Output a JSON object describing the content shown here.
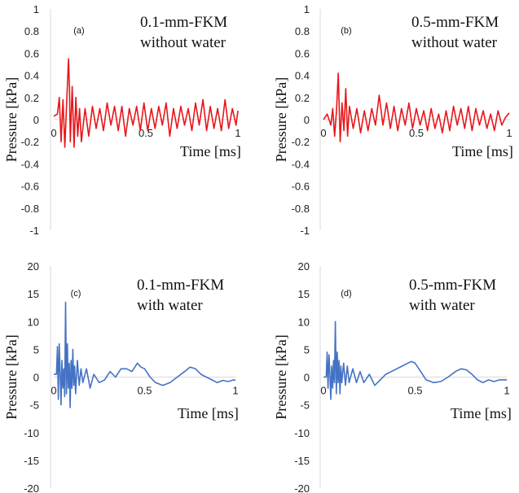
{
  "chart_data": [
    {
      "type": "line",
      "panel_label": "(a)",
      "annotation": [
        "0.1-mm-FKM",
        "without water"
      ],
      "xlabel": "Time [ms]",
      "ylabel": "Pressure [kPa]",
      "xlim": [
        0,
        1
      ],
      "ylim": [
        -1,
        1
      ],
      "xticks": [
        "0",
        "0.5",
        "1"
      ],
      "yticks": [
        "1",
        "0.8",
        "0.6",
        "0.4",
        "0.2",
        "0",
        "-0.2",
        "-0.4",
        "-0.6",
        "-0.8",
        "-1"
      ],
      "grid": false,
      "color": "#e8161b",
      "series": [
        {
          "x": [
            0,
            0.02,
            0.03,
            0.04,
            0.05,
            0.06,
            0.07,
            0.08,
            0.085,
            0.09,
            0.1,
            0.11,
            0.12,
            0.13,
            0.14,
            0.15,
            0.17,
            0.19,
            0.21,
            0.23,
            0.25,
            0.27,
            0.29,
            0.31,
            0.33,
            0.35,
            0.37,
            0.39,
            0.41,
            0.43,
            0.45,
            0.47,
            0.49,
            0.51,
            0.53,
            0.55,
            0.57,
            0.59,
            0.61,
            0.63,
            0.65,
            0.67,
            0.69,
            0.71,
            0.73,
            0.75,
            0.77,
            0.79,
            0.81,
            0.83,
            0.85,
            0.87,
            0.89,
            0.91,
            0.93,
            0.95,
            0.97,
            0.99,
            1.0
          ],
          "y": [
            0.03,
            0.05,
            0.2,
            -0.2,
            0.18,
            -0.25,
            0.15,
            0.55,
            0.3,
            -0.2,
            0.3,
            -0.25,
            0.2,
            -0.15,
            0.1,
            -0.2,
            0.1,
            -0.15,
            0.12,
            -0.08,
            0.1,
            -0.1,
            0.15,
            -0.05,
            0.12,
            -0.1,
            0.12,
            -0.15,
            0.1,
            -0.05,
            0.12,
            -0.1,
            0.15,
            -0.1,
            0.1,
            -0.08,
            0.12,
            -0.05,
            0.15,
            -0.15,
            0.1,
            -0.08,
            0.12,
            -0.05,
            0.1,
            -0.1,
            0.15,
            -0.05,
            0.18,
            -0.1,
            0.12,
            -0.08,
            0.1,
            -0.1,
            0.18,
            -0.08,
            0.1,
            -0.05,
            0.08
          ]
        }
      ]
    },
    {
      "type": "line",
      "panel_label": "(b)",
      "annotation": [
        "0.5-mm-FKM",
        "without water"
      ],
      "xlabel": "Time [ms]",
      "ylabel": "Pressure [kPa]",
      "xlim": [
        0,
        1
      ],
      "ylim": [
        -1,
        1
      ],
      "xticks": [
        "0",
        "0.5",
        "1"
      ],
      "yticks": [
        "1",
        "0.8",
        "0.6",
        "0.4",
        "0.2",
        "0",
        "-0.2",
        "-0.4",
        "-0.6",
        "-0.8",
        "-1"
      ],
      "grid": false,
      "color": "#e8161b",
      "series": [
        {
          "x": [
            0,
            0.02,
            0.04,
            0.05,
            0.06,
            0.07,
            0.08,
            0.09,
            0.1,
            0.11,
            0.12,
            0.13,
            0.14,
            0.16,
            0.18,
            0.2,
            0.22,
            0.24,
            0.26,
            0.28,
            0.3,
            0.32,
            0.34,
            0.36,
            0.38,
            0.4,
            0.42,
            0.44,
            0.46,
            0.48,
            0.5,
            0.52,
            0.54,
            0.56,
            0.58,
            0.6,
            0.62,
            0.64,
            0.66,
            0.68,
            0.7,
            0.72,
            0.74,
            0.76,
            0.78,
            0.8,
            0.82,
            0.84,
            0.86,
            0.88,
            0.9,
            0.92,
            0.94,
            0.96,
            0.98,
            1.0
          ],
          "y": [
            0.0,
            0.05,
            -0.05,
            0.1,
            -0.15,
            0.08,
            0.42,
            -0.2,
            0.15,
            -0.1,
            0.28,
            -0.15,
            0.12,
            -0.08,
            0.1,
            -0.12,
            0.08,
            -0.1,
            0.1,
            -0.05,
            0.22,
            -0.05,
            0.15,
            -0.08,
            0.12,
            -0.1,
            0.1,
            -0.05,
            0.15,
            -0.08,
            0.1,
            -0.05,
            0.08,
            -0.1,
            0.1,
            -0.08,
            0.05,
            -0.12,
            0.08,
            -0.1,
            0.12,
            -0.05,
            0.1,
            -0.08,
            0.12,
            -0.1,
            0.1,
            -0.05,
            0.08,
            -0.08,
            0.05,
            -0.1,
            0.08,
            -0.05,
            0.02,
            0.06
          ]
        }
      ]
    },
    {
      "type": "line",
      "panel_label": "(c)",
      "annotation": [
        "0.1-mm-FKM",
        "with water"
      ],
      "xlabel": "Time [ms]",
      "ylabel": "Pressure [kPa]",
      "xlim": [
        0,
        1
      ],
      "ylim": [
        -20,
        20
      ],
      "xticks": [
        "0",
        "0.5",
        "1"
      ],
      "yticks": [
        "20",
        "15",
        "10",
        "5",
        "0",
        "-5",
        "-10",
        "-15",
        "-20"
      ],
      "grid": false,
      "color": "#4472c4",
      "series": [
        {
          "x": [
            0,
            0.015,
            0.02,
            0.025,
            0.03,
            0.035,
            0.04,
            0.045,
            0.05,
            0.055,
            0.06,
            0.065,
            0.07,
            0.075,
            0.08,
            0.085,
            0.09,
            0.095,
            0.1,
            0.105,
            0.11,
            0.115,
            0.12,
            0.13,
            0.14,
            0.15,
            0.16,
            0.18,
            0.2,
            0.22,
            0.25,
            0.28,
            0.31,
            0.34,
            0.37,
            0.4,
            0.43,
            0.46,
            0.48,
            0.5,
            0.53,
            0.56,
            0.6,
            0.64,
            0.68,
            0.72,
            0.75,
            0.78,
            0.81,
            0.84,
            0.87,
            0.9,
            0.93,
            0.96,
            0.99,
            1.0
          ],
          "y": [
            0.5,
            0.5,
            5.5,
            -4,
            6,
            1,
            -5,
            3,
            -2,
            1.5,
            -3.5,
            13.5,
            -3,
            6,
            -2,
            2.5,
            -5.5,
            3,
            -2,
            5,
            -1.5,
            2,
            -3,
            3,
            -1.5,
            1.5,
            -1,
            1.5,
            -2,
            0.5,
            -1,
            -0.5,
            1,
            0,
            1.5,
            1.5,
            1,
            2.5,
            1.8,
            1.5,
            0,
            -1,
            -1.5,
            -1,
            0,
            1,
            1.8,
            1.5,
            0.5,
            0,
            -0.5,
            -1,
            -0.6,
            -0.8,
            -0.5,
            -0.6
          ]
        }
      ]
    },
    {
      "type": "line",
      "panel_label": "(d)",
      "annotation": [
        "0.5-mm-FKM",
        "with water"
      ],
      "xlabel": "Time [ms]",
      "ylabel": "Pressure [kPa]",
      "xlim": [
        0,
        1
      ],
      "ylim": [
        -20,
        20
      ],
      "xticks": [
        "0",
        "0.5",
        "1"
      ],
      "yticks": [
        "20",
        "15",
        "10",
        "5",
        "0",
        "-5",
        "-10",
        "-15",
        "-20"
      ],
      "grid": false,
      "color": "#4472c4",
      "series": [
        {
          "x": [
            0,
            0.015,
            0.02,
            0.025,
            0.03,
            0.035,
            0.04,
            0.045,
            0.05,
            0.055,
            0.06,
            0.065,
            0.07,
            0.075,
            0.08,
            0.085,
            0.09,
            0.095,
            0.1,
            0.11,
            0.12,
            0.13,
            0.14,
            0.16,
            0.18,
            0.2,
            0.22,
            0.25,
            0.28,
            0.31,
            0.34,
            0.37,
            0.4,
            0.43,
            0.46,
            0.48,
            0.5,
            0.53,
            0.56,
            0.6,
            0.64,
            0.68,
            0.72,
            0.75,
            0.78,
            0.81,
            0.84,
            0.87,
            0.9,
            0.93,
            0.96,
            0.99,
            1.0
          ],
          "y": [
            0,
            0,
            4.5,
            -2,
            4,
            0.5,
            -4,
            2,
            -2,
            3,
            -1,
            10,
            -3,
            4.5,
            -1,
            3,
            -3,
            2,
            -1,
            2.5,
            -1.5,
            2,
            -1,
            1.5,
            -1,
            1,
            -1,
            0.5,
            -1.5,
            -0.5,
            0.5,
            1,
            1.5,
            2,
            2.5,
            2.8,
            2.5,
            1,
            -0.5,
            -1,
            -0.8,
            0,
            1,
            1.5,
            1.3,
            0.5,
            -0.5,
            -1,
            -0.5,
            -0.8,
            -0.5,
            -0.5,
            -0.5
          ]
        }
      ]
    }
  ]
}
